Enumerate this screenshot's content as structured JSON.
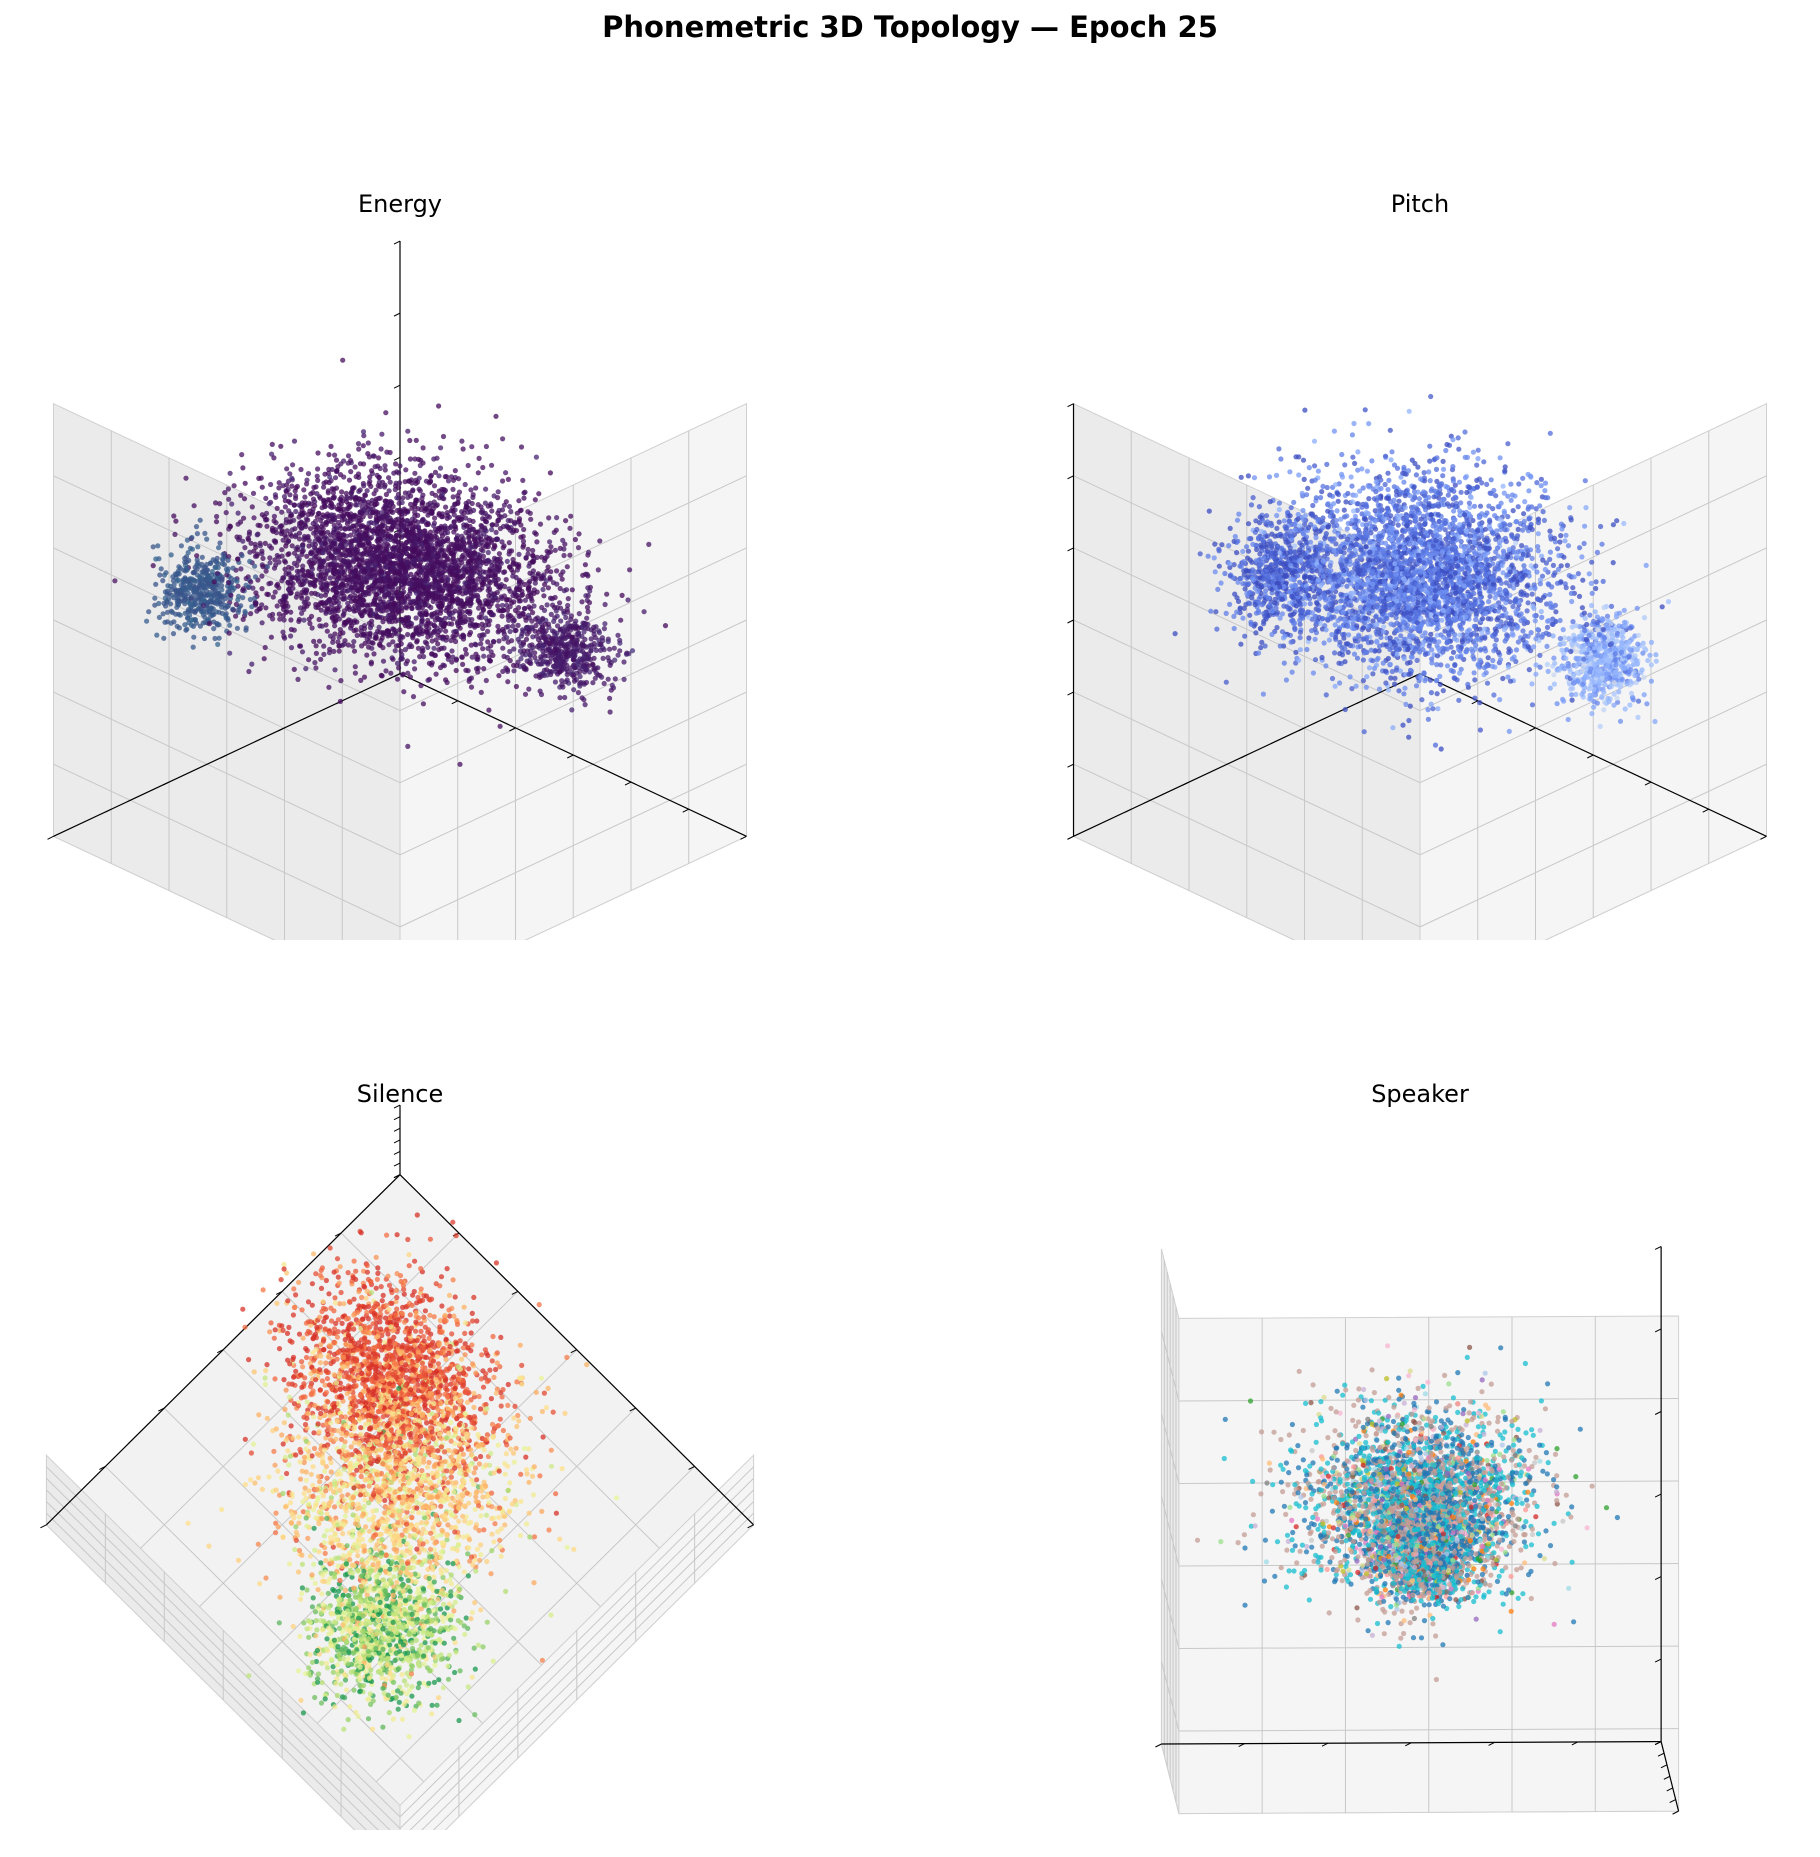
{
  "figure": {
    "title": "Phonemetric 3D Topology — Epoch 25"
  },
  "chart_data": [
    {
      "type": "scatter",
      "subtype": "3d-scatter",
      "title": "Energy",
      "xlabel": "",
      "ylabel": "",
      "zlabel": "",
      "tick_labels": "none",
      "grid": true,
      "point_count_approx": 4500,
      "colormap": "viridis",
      "palette": [
        "#440154",
        "#46327e",
        "#365c8d",
        "#277f8e",
        "#1fa187",
        "#4ac16d",
        "#a0da39",
        "#fde725"
      ],
      "dominant_color": "#440154",
      "clusters": [
        {
          "center": [
            0.0,
            0.0,
            0.25
          ],
          "spread": [
            0.55,
            0.45,
            0.25
          ],
          "share": 0.8,
          "value": 0.02
        },
        {
          "center": [
            -0.55,
            0.6,
            0.15
          ],
          "spread": [
            0.15,
            0.15,
            0.15
          ],
          "share": 0.1,
          "value": 0.25
        },
        {
          "center": [
            0.6,
            -0.35,
            -0.05
          ],
          "spread": [
            0.2,
            0.15,
            0.12
          ],
          "share": 0.1,
          "value": 0.05
        }
      ]
    },
    {
      "type": "scatter",
      "subtype": "3d-scatter",
      "title": "Pitch",
      "xlabel": "",
      "ylabel": "",
      "zlabel": "",
      "tick_labels": "none",
      "grid": true,
      "point_count_approx": 4500,
      "colormap": "coolwarm",
      "palette": [
        "#3b4cc0",
        "#5673e0",
        "#7597f6",
        "#98b9ff",
        "#b9d0f9",
        "#d5dbe5"
      ],
      "clusters": [
        {
          "center": [
            0.0,
            0.0,
            0.2
          ],
          "spread": [
            0.5,
            0.45,
            0.3
          ],
          "share": 0.75,
          "value": 0.2
        },
        {
          "center": [
            0.55,
            -0.25,
            0.1
          ],
          "spread": [
            0.18,
            0.18,
            0.2
          ],
          "share": 0.12,
          "value": 0.05
        },
        {
          "center": [
            -0.5,
            0.55,
            -0.2
          ],
          "spread": [
            0.15,
            0.15,
            0.15
          ],
          "share": 0.13,
          "value": 0.55
        }
      ]
    },
    {
      "type": "scatter",
      "subtype": "3d-scatter",
      "title": "Silence",
      "xlabel": "",
      "ylabel": "",
      "zlabel": "",
      "tick_labels": "none",
      "grid": true,
      "point_count_approx": 4500,
      "colormap": "RdYlGn",
      "palette": [
        "#d73027",
        "#f46d43",
        "#fdae61",
        "#fee08b",
        "#e6f598",
        "#a6d96a",
        "#1a9850"
      ],
      "clusters": [
        {
          "center": [
            -0.35,
            -0.3,
            0.0
          ],
          "spread": [
            0.35,
            0.3,
            0.2
          ],
          "share": 0.4,
          "value": 0.1
        },
        {
          "center": [
            0.0,
            0.0,
            0.0
          ],
          "spread": [
            0.4,
            0.4,
            0.2
          ],
          "share": 0.35,
          "value": 0.45
        },
        {
          "center": [
            0.35,
            0.45,
            0.0
          ],
          "spread": [
            0.25,
            0.25,
            0.2
          ],
          "share": 0.25,
          "value": 0.8
        }
      ]
    },
    {
      "type": "scatter",
      "subtype": "3d-scatter",
      "title": "Speaker",
      "xlabel": "",
      "ylabel": "",
      "zlabel": "",
      "tick_labels": "none",
      "grid": true,
      "point_count_approx": 4500,
      "colormap": "tab20",
      "palette": [
        "#1f77b4",
        "#aec7e8",
        "#ff7f0e",
        "#ffbb78",
        "#2ca02c",
        "#98df8a",
        "#d62728",
        "#ff9896",
        "#9467bd",
        "#c5b0d5",
        "#8c564b",
        "#c49c94",
        "#e377c2",
        "#f7b6d2",
        "#7f7f7f",
        "#c7c7c7",
        "#bcbd22",
        "#dbdb8d",
        "#17becf",
        "#9edae5"
      ],
      "dominant_colors": [
        "#1f77b4",
        "#17becf",
        "#c49c94"
      ],
      "clusters": [
        {
          "center": [
            -0.2,
            0.0,
            0.1
          ],
          "spread": [
            0.45,
            0.4,
            0.3
          ],
          "share": 0.6,
          "value": 0.0
        },
        {
          "center": [
            0.45,
            0.0,
            0.0
          ],
          "spread": [
            0.25,
            0.2,
            0.2
          ],
          "share": 0.25,
          "value": 0.0
        },
        {
          "center": [
            0.8,
            0.0,
            0.0
          ],
          "spread": [
            0.12,
            0.1,
            0.1
          ],
          "share": 0.15,
          "value": 0.0
        }
      ]
    }
  ]
}
